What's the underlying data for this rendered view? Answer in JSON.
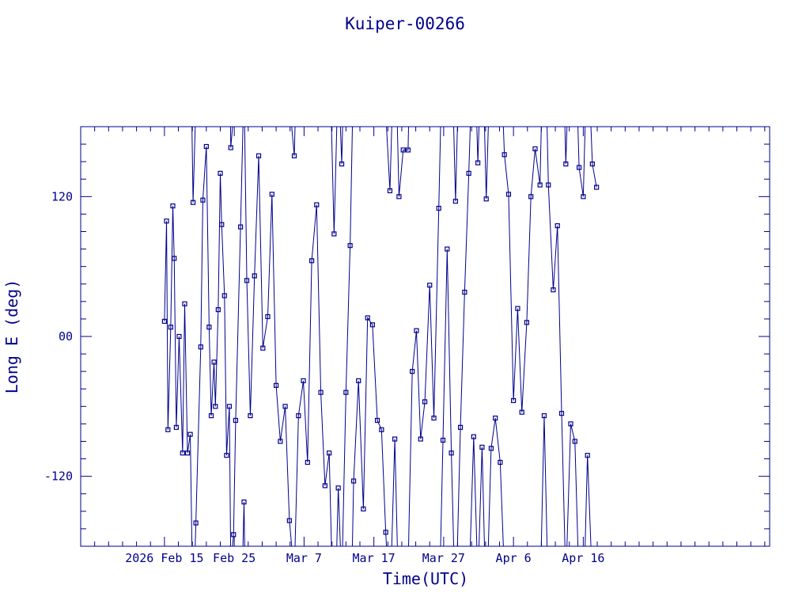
{
  "chart_data": {
    "type": "line",
    "title": "Kuiper-00266",
    "xlabel": "Time(UTC)",
    "ylabel": "Long E (deg)",
    "x_tick_labels": [
      "2026 Feb 15",
      "Feb 25",
      "Mar  7",
      "Mar 17",
      "Mar 27",
      "Apr  6",
      "Apr 16"
    ],
    "x_ticks_days": [
      0,
      10,
      20,
      30,
      40,
      50,
      60
    ],
    "xlim_days": [
      -12.0,
      86.7
    ],
    "y_tick_labels": [
      "120",
      "00",
      "-120"
    ],
    "y_ticks": [
      120,
      0,
      -120
    ],
    "ylim": [
      -180,
      180
    ],
    "grid": false,
    "series": [
      {
        "marker": "square",
        "x_days": [
          0.0,
          0.3,
          0.5,
          0.9,
          1.2,
          1.4,
          1.7,
          2.1,
          2.6,
          2.9,
          3.3,
          3.7,
          4.1,
          4.5,
          5.2,
          5.5,
          6.0,
          6.4,
          6.7,
          7.1,
          7.3,
          7.7,
          8.0,
          8.2,
          8.6,
          8.9,
          9.3,
          9.5,
          9.9,
          10.2,
          10.9,
          11.4,
          11.8,
          12.3,
          12.9,
          13.5,
          14.1,
          14.8,
          15.4,
          16.0,
          16.6,
          17.3,
          17.9,
          18.6,
          19.2,
          19.9,
          20.5,
          21.1,
          21.8,
          22.4,
          23.0,
          23.6,
          24.3,
          24.9,
          25.4,
          26.0,
          26.6,
          27.1,
          27.8,
          28.5,
          29.1,
          29.8,
          30.5,
          31.1,
          31.7,
          32.3,
          33.0,
          33.6,
          34.2,
          34.9,
          35.5,
          36.1,
          36.7,
          37.3,
          38.0,
          38.6,
          39.3,
          39.9,
          40.5,
          41.1,
          41.7,
          42.4,
          43.0,
          43.6,
          44.3,
          44.9,
          45.5,
          46.1,
          46.8,
          47.4,
          48.1,
          48.7,
          49.3,
          50.0,
          50.6,
          51.2,
          51.9,
          52.5,
          53.1,
          53.8,
          54.4,
          55.0,
          55.7,
          56.3,
          56.9,
          57.5,
          58.2,
          58.8,
          59.4,
          60.0,
          60.6,
          61.3,
          61.9
        ],
        "y": [
          13,
          99,
          -80,
          8,
          112,
          67,
          -78,
          0,
          -100,
          28,
          -100,
          -84,
          115,
          -160,
          -9,
          117,
          163,
          8,
          -68,
          -22,
          -60,
          23,
          140,
          96,
          35,
          -102,
          -60,
          162,
          -170,
          -72,
          94,
          -142,
          48,
          -68,
          52,
          155,
          -10,
          17,
          122,
          -42,
          -90,
          -60,
          -158,
          155,
          -68,
          -38,
          -108,
          65,
          113,
          -48,
          -128,
          -100,
          88,
          -130,
          148,
          -48,
          78,
          -124,
          -38,
          -148,
          16,
          10,
          -72,
          -80,
          -168,
          125,
          -88,
          120,
          160,
          160,
          -30,
          5,
          -88,
          -56,
          44,
          -70,
          110,
          -89,
          75,
          -100,
          116,
          -78,
          38,
          140,
          -86,
          149,
          -95,
          118,
          -96,
          -70,
          -108,
          156,
          122,
          -55,
          24,
          -65,
          12,
          120,
          161,
          130,
          -68,
          130,
          40,
          95,
          -66,
          148,
          -75,
          -90,
          145,
          120,
          -102,
          148,
          128
        ]
      }
    ]
  }
}
